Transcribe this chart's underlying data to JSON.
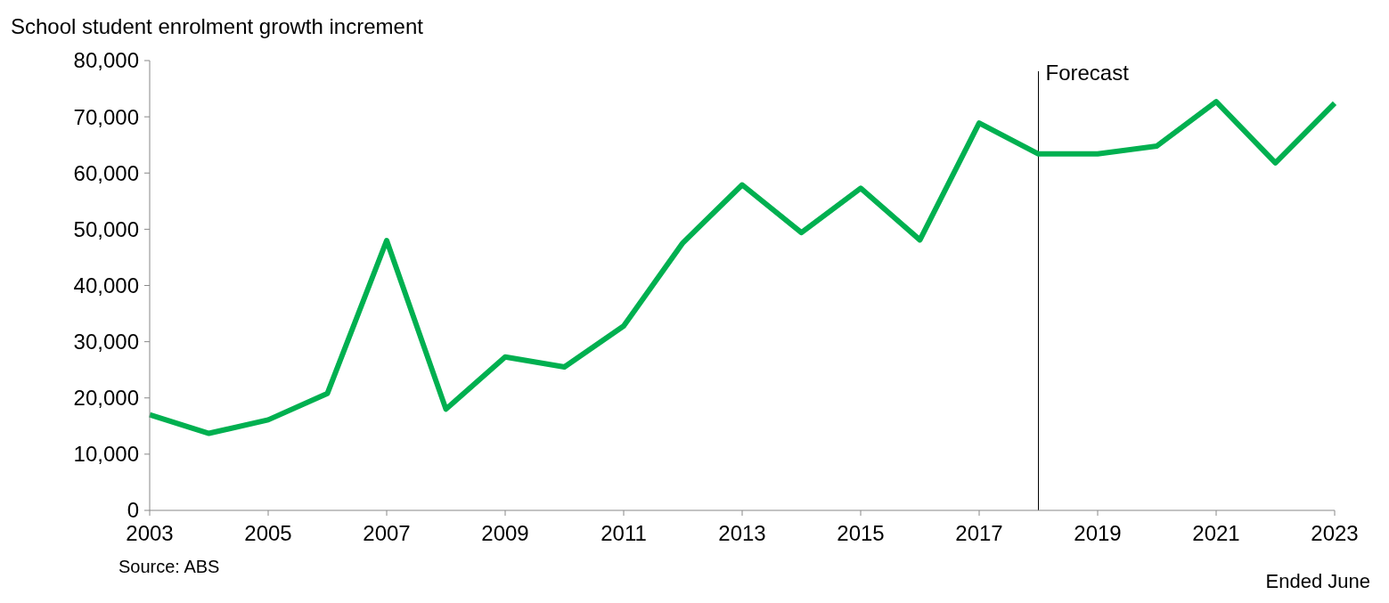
{
  "chart_data": {
    "type": "line",
    "ylabel": "School student enrolment growth increment",
    "xlabel": "Ended June",
    "x": [
      2003,
      2004,
      2005,
      2006,
      2007,
      2008,
      2009,
      2010,
      2011,
      2012,
      2013,
      2014,
      2015,
      2016,
      2017,
      2018,
      2019,
      2020,
      2021,
      2022,
      2023
    ],
    "series": [
      {
        "color": "#00b050",
        "values": [
          17000,
          13700,
          16100,
          20800,
          48000,
          18000,
          27300,
          25500,
          32800,
          47600,
          57900,
          49400,
          57300,
          48100,
          68900,
          63400,
          63400,
          64800,
          72700,
          61800,
          72400
        ]
      }
    ],
    "xlim": [
      2003,
      2023
    ],
    "xticks": [
      2003,
      2005,
      2007,
      2009,
      2011,
      2013,
      2015,
      2017,
      2019,
      2021,
      2023
    ],
    "ylim": [
      0,
      80000
    ],
    "yticks": [
      {
        "value": 0,
        "label": "0"
      },
      {
        "value": 10000,
        "label": "10,000"
      },
      {
        "value": 20000,
        "label": "20,000"
      },
      {
        "value": 30000,
        "label": "30,000"
      },
      {
        "value": 40000,
        "label": "40,000"
      },
      {
        "value": 50000,
        "label": "50,000"
      },
      {
        "value": 60000,
        "label": "60,000"
      },
      {
        "value": 70000,
        "label": "70,000"
      },
      {
        "value": 80000,
        "label": "80,000"
      }
    ],
    "ref_lines": [
      {
        "axis": "x",
        "value": 2018,
        "label": "Forecast",
        "color": "#000000"
      }
    ],
    "annotations": [
      "Source: ABS"
    ],
    "grid": false,
    "marker": "none",
    "line_style": "solid"
  }
}
